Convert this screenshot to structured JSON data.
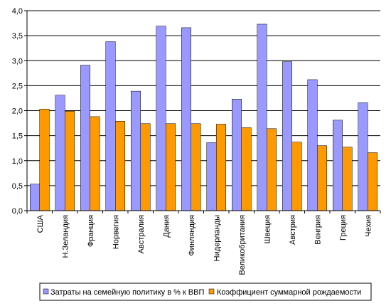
{
  "chart_data": {
    "type": "bar",
    "categories": [
      "США",
      "Н.Зеландия",
      "Франция",
      "Норвегия",
      "Австралия",
      "Дания",
      "Финляндия",
      "Нидерланды",
      "Великобритания",
      "Швеция",
      "Австрия",
      "Венгрия",
      "Греция",
      "Чехия"
    ],
    "series": [
      {
        "name": "Затраты на семейную политику в % к ВВП",
        "color": "#9999ff",
        "values": [
          0.53,
          2.31,
          2.91,
          3.38,
          2.39,
          3.69,
          3.66,
          1.36,
          2.23,
          3.73,
          2.98,
          2.62,
          1.81,
          2.16
        ]
      },
      {
        "name": "Коэффициент суммарной рождаемости",
        "color": "#ff9900",
        "values": [
          2.03,
          1.99,
          1.88,
          1.79,
          1.74,
          1.74,
          1.74,
          1.73,
          1.66,
          1.64,
          1.37,
          1.3,
          1.27,
          1.16
        ]
      }
    ],
    "ylim": [
      0,
      4
    ],
    "yticks": [
      "0,0",
      "0,5",
      "1,0",
      "1,5",
      "2,0",
      "2,5",
      "3,0",
      "3,5",
      "4,0"
    ],
    "grid": true,
    "legend_position": "bottom"
  }
}
